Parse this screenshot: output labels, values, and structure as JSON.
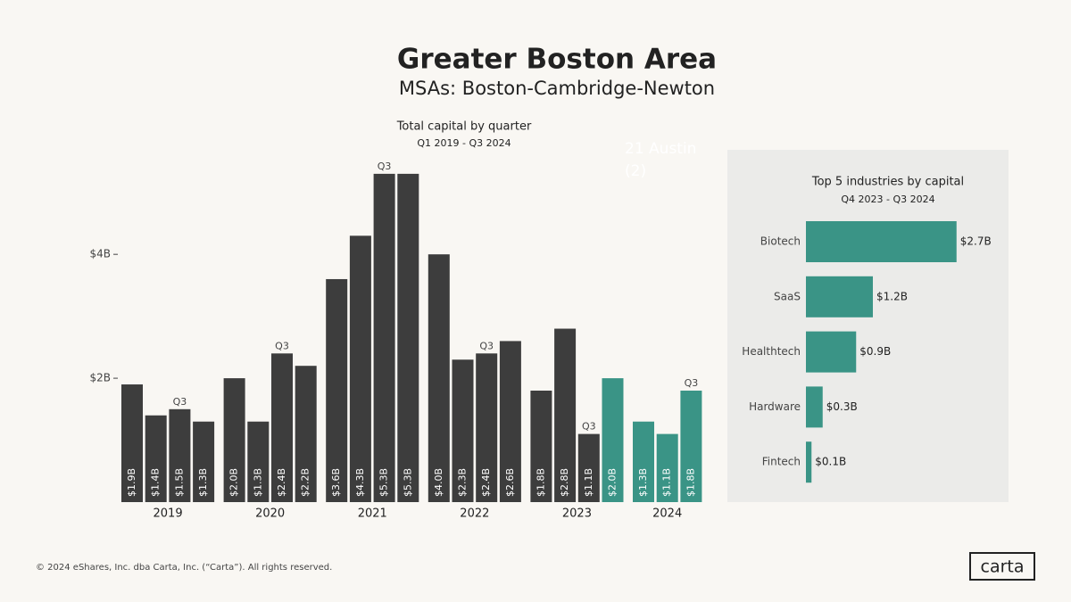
{
  "header": {
    "title": "Greater Boston Area",
    "subtitle": "MSAs: Boston-Cambridge-Newton"
  },
  "chart_data": [
    {
      "type": "grouped-bar",
      "title": "Total capital by quarter",
      "subtitle": "Q1 2019 - Q3 2024",
      "ylim": [
        0,
        5.5
      ],
      "yticks": [
        {
          "value": 2,
          "label": "$2B"
        },
        {
          "value": 4,
          "label": "$4B"
        }
      ],
      "overlay_text": [
        "21 Austin",
        "(2)"
      ],
      "groups": [
        {
          "name": "2019",
          "values": [
            1.9,
            1.4,
            1.5,
            1.3
          ],
          "value_labels": [
            "$1.9B",
            "$1.4B",
            "$1.5B",
            "$1.3B"
          ],
          "colors": [
            "#3d3d3d",
            "#3d3d3d",
            "#3d3d3d",
            "#3d3d3d"
          ],
          "annotations": [
            null,
            null,
            "Q3",
            null
          ]
        },
        {
          "name": "2020",
          "values": [
            2.0,
            1.3,
            2.4,
            2.2
          ],
          "value_labels": [
            "$2.0B",
            "$1.3B",
            "$2.4B",
            "$2.2B"
          ],
          "colors": [
            "#3d3d3d",
            "#3d3d3d",
            "#3d3d3d",
            "#3d3d3d"
          ],
          "annotations": [
            null,
            null,
            "Q3",
            null
          ]
        },
        {
          "name": "2021",
          "values": [
            3.6,
            4.3,
            5.3,
            5.3
          ],
          "value_labels": [
            "$3.6B",
            "$4.3B",
            "$5.3B",
            "$5.3B"
          ],
          "colors": [
            "#3d3d3d",
            "#3d3d3d",
            "#3d3d3d",
            "#3d3d3d"
          ],
          "annotations": [
            null,
            null,
            "Q3",
            null
          ]
        },
        {
          "name": "2022",
          "values": [
            4.0,
            2.3,
            2.4,
            2.6
          ],
          "value_labels": [
            "$4.0B",
            "$2.3B",
            "$2.4B",
            "$2.6B"
          ],
          "colors": [
            "#3d3d3d",
            "#3d3d3d",
            "#3d3d3d",
            "#3d3d3d"
          ],
          "annotations": [
            null,
            null,
            "Q3",
            null
          ]
        },
        {
          "name": "2023",
          "values": [
            1.8,
            2.8,
            1.1,
            2.0
          ],
          "value_labels": [
            "$1.8B",
            "$2.8B",
            "$1.1B",
            "$2.0B"
          ],
          "colors": [
            "#3d3d3d",
            "#3d3d3d",
            "#3d3d3d",
            "#3a9486"
          ],
          "annotations": [
            null,
            null,
            "Q3",
            null
          ]
        },
        {
          "name": "2024",
          "values": [
            1.3,
            1.1,
            1.8
          ],
          "value_labels": [
            "$1.3B",
            "$1.1B",
            "$1.8B"
          ],
          "colors": [
            "#3a9486",
            "#3a9486",
            "#3a9486"
          ],
          "annotations": [
            null,
            null,
            "Q3"
          ]
        }
      ]
    },
    {
      "type": "hbar",
      "title": "Top 5 industries by capital",
      "subtitle": "Q4 2023 - Q3 2024",
      "categories": [
        "Biotech",
        "SaaS",
        "Healthtech",
        "Hardware",
        "Fintech"
      ],
      "values": [
        2.7,
        1.2,
        0.9,
        0.3,
        0.1
      ],
      "value_labels": [
        "$2.7B",
        "$1.2B",
        "$0.9B",
        "$0.3B",
        "$0.1B"
      ],
      "color": "#3a9486",
      "xlim": [
        0,
        3.6
      ]
    }
  ],
  "footer": {
    "copyright": "© 2024 eShares, Inc. dba Carta, Inc. (“Carta”). All rights reserved.",
    "logo": "carta"
  }
}
